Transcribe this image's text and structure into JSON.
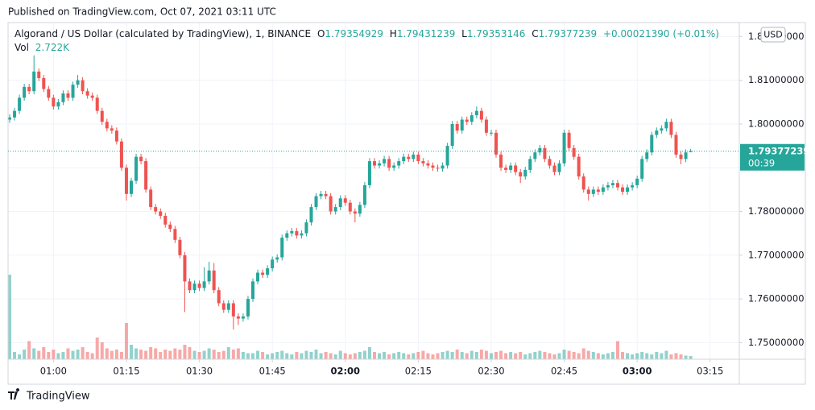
{
  "header": "Published on TradingView.com, Oct 07, 2021 03:11 UTC",
  "footer": "TradingView",
  "chart_data": {
    "type": "candlestick",
    "title": "Algorand / US Dollar (calculated by TradingView), 1, BINANCE",
    "legend": {
      "o": "O",
      "h": "H",
      "l": "L",
      "c": "C",
      "change": "+0.00021390 (+0.01%)",
      "vol": "Vol",
      "vol_label": "2.722K"
    },
    "currency": "USD",
    "countdown": "00:39",
    "up_color": "#26a69a",
    "down_color": "#ef5350",
    "ylim": [
      1.7462,
      1.8232
    ],
    "yticks": [
      {
        "value": 1.75,
        "label": "1.75000000"
      },
      {
        "value": 1.76,
        "label": "1.76000000"
      },
      {
        "value": 1.77,
        "label": "1.77000000"
      },
      {
        "value": 1.78,
        "label": "1.78000000"
      },
      {
        "value": 1.79,
        "label": "1.79000000"
      },
      {
        "value": 1.8,
        "label": "1.80000000"
      },
      {
        "value": 1.81,
        "label": "1.81000000"
      },
      {
        "value": 1.82,
        "label": "1.82000000"
      }
    ],
    "xticks": [
      {
        "value": 9,
        "label": "01:00"
      },
      {
        "value": 24,
        "label": "01:15"
      },
      {
        "value": 39,
        "label": "01:30"
      },
      {
        "value": 54,
        "label": "01:45"
      },
      {
        "value": 69,
        "label": "02:00",
        "bold": true
      },
      {
        "value": 84,
        "label": "02:15"
      },
      {
        "value": 99,
        "label": "02:30"
      },
      {
        "value": 114,
        "label": "02:45"
      },
      {
        "value": 129,
        "label": "03:00",
        "bold": true
      },
      {
        "value": 144,
        "label": "03:15"
      }
    ],
    "grid": true,
    "open": [
      1.801,
      1.8015,
      1.803,
      1.806,
      1.8085,
      1.8075,
      1.812,
      1.8105,
      1.808,
      1.806,
      1.804,
      1.805,
      1.807,
      1.806,
      1.809,
      1.81,
      1.8075,
      1.8065,
      1.806,
      1.803,
      1.8005,
      1.799,
      1.7985,
      1.796,
      1.79,
      1.784,
      1.787,
      1.7925,
      1.7915,
      1.785,
      1.781,
      1.78,
      1.779,
      1.777,
      1.776,
      1.7735,
      1.77,
      1.764,
      1.762,
      1.7635,
      1.7625,
      1.764,
      1.7665,
      1.762,
      1.759,
      1.7575,
      1.759,
      1.756,
      1.7555,
      1.756,
      1.76,
      1.764,
      1.766,
      1.7655,
      1.767,
      1.769,
      1.7695,
      1.774,
      1.775,
      1.7755,
      1.7745,
      1.775,
      1.7775,
      1.781,
      1.7835,
      1.784,
      1.7835,
      1.78,
      1.781,
      1.783,
      1.782,
      1.78,
      1.7795,
      1.7815,
      1.786,
      1.7915,
      1.7905,
      1.791,
      1.792,
      1.79,
      1.7905,
      1.7915,
      1.7925,
      1.792,
      1.793,
      1.7915,
      1.791,
      1.7905,
      1.79,
      1.7898,
      1.7905,
      1.795,
      1.8,
      1.7985,
      1.801,
      1.8005,
      1.802,
      1.803,
      1.801,
      1.798,
      1.798,
      1.793,
      1.79,
      1.7895,
      1.7905,
      1.789,
      1.788,
      1.7895,
      1.792,
      1.7935,
      1.7945,
      1.792,
      1.7905,
      1.789,
      1.791,
      1.798,
      1.7945,
      1.7925,
      1.788,
      1.785,
      1.784,
      1.785,
      1.7845,
      1.7855,
      1.786,
      1.7865,
      1.7855,
      1.7845,
      1.7855,
      1.786,
      1.7875,
      1.792,
      1.7935,
      1.7975,
      1.7985,
      1.799,
      1.8005,
      1.7975,
      1.793,
      1.792,
      1.79354929
    ],
    "high": [
      1.8022,
      1.8037,
      1.8067,
      1.8092,
      1.8092,
      1.8157,
      1.8127,
      1.8112,
      1.8087,
      1.8067,
      1.8057,
      1.8077,
      1.8077,
      1.8097,
      1.8112,
      1.8107,
      1.8082,
      1.8072,
      1.8067,
      1.8037,
      1.8012,
      1.7997,
      1.7992,
      1.7967,
      1.7907,
      1.7877,
      1.7932,
      1.7932,
      1.7922,
      1.7857,
      1.7817,
      1.7807,
      1.7797,
      1.7777,
      1.7767,
      1.7742,
      1.7707,
      1.7647,
      1.7642,
      1.7642,
      1.7672,
      1.7685,
      1.7682,
      1.7627,
      1.7597,
      1.7597,
      1.7597,
      1.7567,
      1.7567,
      1.7607,
      1.7647,
      1.7667,
      1.7667,
      1.7677,
      1.7697,
      1.7702,
      1.7747,
      1.7757,
      1.7762,
      1.7762,
      1.7757,
      1.7782,
      1.7817,
      1.7842,
      1.7847,
      1.7847,
      1.7842,
      1.7817,
      1.7837,
      1.7837,
      1.7827,
      1.7807,
      1.7822,
      1.7867,
      1.7922,
      1.7922,
      1.7917,
      1.7927,
      1.7927,
      1.7912,
      1.7922,
      1.7932,
      1.7932,
      1.7937,
      1.7937,
      1.7922,
      1.7917,
      1.7912,
      1.7907,
      1.7912,
      1.7957,
      1.8007,
      1.8007,
      1.8017,
      1.8017,
      1.8027,
      1.804,
      1.8037,
      1.8017,
      1.7987,
      1.7987,
      1.7937,
      1.7907,
      1.7912,
      1.7912,
      1.7897,
      1.7902,
      1.7927,
      1.7942,
      1.7952,
      1.7952,
      1.7927,
      1.7912,
      1.7917,
      1.7987,
      1.7987,
      1.7952,
      1.7932,
      1.7887,
      1.7857,
      1.7857,
      1.7857,
      1.7862,
      1.7867,
      1.7872,
      1.7872,
      1.7862,
      1.7862,
      1.7867,
      1.7882,
      1.7927,
      1.7942,
      1.7982,
      1.7992,
      1.7997,
      1.8012,
      1.8012,
      1.7982,
      1.7937,
      1.7942,
      1.79431239
    ],
    "low": [
      1.8003,
      1.8008,
      1.8023,
      1.8053,
      1.8068,
      1.8068,
      1.8098,
      1.8073,
      1.8053,
      1.8033,
      1.8033,
      1.8043,
      1.8053,
      1.8053,
      1.8083,
      1.8068,
      1.8058,
      1.8053,
      1.8023,
      1.7998,
      1.7983,
      1.7978,
      1.7953,
      1.7893,
      1.7825,
      1.7833,
      1.7863,
      1.7908,
      1.7843,
      1.7803,
      1.7793,
      1.7783,
      1.7763,
      1.7753,
      1.7728,
      1.7693,
      1.757,
      1.7613,
      1.7613,
      1.7618,
      1.7618,
      1.7633,
      1.7613,
      1.7583,
      1.7568,
      1.7568,
      1.753,
      1.754,
      1.7548,
      1.7553,
      1.7593,
      1.7633,
      1.7648,
      1.7648,
      1.7663,
      1.7683,
      1.7688,
      1.7733,
      1.7743,
      1.7738,
      1.7738,
      1.7743,
      1.7768,
      1.7803,
      1.7828,
      1.7828,
      1.7793,
      1.7793,
      1.7803,
      1.7813,
      1.7793,
      1.7775,
      1.7788,
      1.7808,
      1.7853,
      1.7898,
      1.7898,
      1.7903,
      1.7893,
      1.7893,
      1.7898,
      1.7908,
      1.7913,
      1.7913,
      1.7908,
      1.7903,
      1.7898,
      1.7893,
      1.7891,
      1.7891,
      1.7898,
      1.7943,
      1.7978,
      1.7978,
      1.7998,
      1.7998,
      1.8013,
      1.8003,
      1.7973,
      1.7973,
      1.7923,
      1.7893,
      1.7888,
      1.7888,
      1.7883,
      1.7865,
      1.7873,
      1.7888,
      1.7913,
      1.7928,
      1.7913,
      1.7898,
      1.7883,
      1.7883,
      1.7903,
      1.7938,
      1.7918,
      1.7873,
      1.7843,
      1.7825,
      1.7833,
      1.7838,
      1.7838,
      1.7848,
      1.7853,
      1.7848,
      1.7838,
      1.7838,
      1.7848,
      1.7853,
      1.7868,
      1.7913,
      1.7928,
      1.7968,
      1.7978,
      1.7983,
      1.7968,
      1.7923,
      1.7908,
      1.7913,
      1.79353146
    ],
    "close": [
      1.8015,
      1.803,
      1.806,
      1.8085,
      1.8075,
      1.812,
      1.8105,
      1.808,
      1.806,
      1.804,
      1.805,
      1.807,
      1.806,
      1.809,
      1.81,
      1.8075,
      1.8065,
      1.806,
      1.803,
      1.8005,
      1.799,
      1.7985,
      1.796,
      1.79,
      1.784,
      1.787,
      1.7925,
      1.7915,
      1.785,
      1.781,
      1.78,
      1.779,
      1.777,
      1.776,
      1.7735,
      1.77,
      1.764,
      1.762,
      1.7635,
      1.7625,
      1.764,
      1.7665,
      1.762,
      1.759,
      1.7575,
      1.759,
      1.756,
      1.7555,
      1.756,
      1.76,
      1.764,
      1.766,
      1.7655,
      1.767,
      1.769,
      1.7695,
      1.774,
      1.775,
      1.7755,
      1.7745,
      1.775,
      1.7775,
      1.781,
      1.7835,
      1.784,
      1.7835,
      1.78,
      1.781,
      1.783,
      1.782,
      1.78,
      1.7795,
      1.7815,
      1.786,
      1.7915,
      1.7905,
      1.791,
      1.792,
      1.79,
      1.7905,
      1.7915,
      1.7925,
      1.792,
      1.793,
      1.7915,
      1.791,
      1.7905,
      1.79,
      1.7898,
      1.7905,
      1.795,
      1.8,
      1.7985,
      1.801,
      1.8005,
      1.802,
      1.803,
      1.801,
      1.798,
      1.798,
      1.793,
      1.79,
      1.7895,
      1.7905,
      1.789,
      1.788,
      1.7895,
      1.792,
      1.7935,
      1.7945,
      1.792,
      1.7905,
      1.789,
      1.791,
      1.798,
      1.7945,
      1.7925,
      1.788,
      1.785,
      1.784,
      1.785,
      1.7845,
      1.7855,
      1.786,
      1.7865,
      1.7855,
      1.7845,
      1.7855,
      1.786,
      1.7875,
      1.792,
      1.7935,
      1.7975,
      1.7985,
      1.799,
      1.8005,
      1.7975,
      1.793,
      1.792,
      1.7935,
      1.79377239
    ],
    "volume": [
      70,
      6,
      4,
      8,
      15,
      9,
      7,
      10,
      6,
      8,
      5,
      6,
      9,
      7,
      8,
      10,
      6,
      5,
      18,
      14,
      9,
      7,
      8,
      6,
      30,
      12,
      9,
      8,
      7,
      10,
      9,
      6,
      8,
      7,
      9,
      8,
      12,
      10,
      7,
      6,
      7,
      9,
      8,
      6,
      7,
      10,
      8,
      9,
      6,
      5,
      5,
      7,
      6,
      4,
      5,
      6,
      7,
      5,
      4,
      6,
      5,
      7,
      6,
      8,
      5,
      6,
      5,
      4,
      7,
      5,
      4,
      5,
      6,
      7,
      10,
      6,
      5,
      6,
      4,
      5,
      6,
      5,
      4,
      5,
      6,
      7,
      5,
      4,
      5,
      6,
      7,
      6,
      8,
      6,
      5,
      7,
      6,
      8,
      7,
      5,
      6,
      7,
      5,
      6,
      5,
      6,
      4,
      5,
      6,
      7,
      6,
      5,
      4,
      5,
      8,
      7,
      6,
      5,
      9,
      7,
      6,
      5,
      4,
      5,
      6,
      15,
      6,
      5,
      4,
      5,
      6,
      5,
      4,
      6,
      5,
      7,
      4,
      5,
      4,
      3,
      2.722
    ]
  }
}
